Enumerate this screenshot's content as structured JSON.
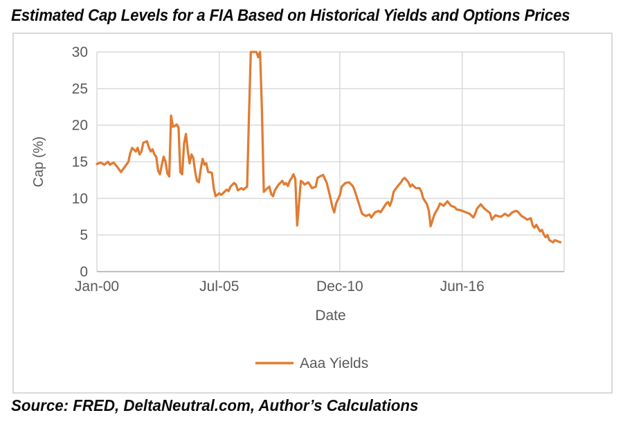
{
  "title": "Estimated Cap Levels for a FIA Based on Historical Yields and Options Prices",
  "source": "Source: FRED, DeltaNeutral.com, Author’s Calculations",
  "colors": {
    "line": "#E07C33",
    "gridline": "#D9D9D9",
    "axis_line": "#BFBFBF",
    "tick_text": "#595959",
    "frame_border": "#D9D9D9",
    "text": "#0B0B0B"
  },
  "chart_data": {
    "type": "line",
    "xlabel": "Date",
    "ylabel": "Cap (%)",
    "ylim": [
      0,
      30
    ],
    "yticks": [
      0,
      5,
      10,
      15,
      20,
      25,
      30
    ],
    "x_unit": "months since Jan-2000",
    "x_domain_months": [
      0,
      252
    ],
    "xticks": [
      {
        "month": 0,
        "label": "Jan-00"
      },
      {
        "month": 66,
        "label": "Jul-05"
      },
      {
        "month": 131,
        "label": "Dec-10"
      },
      {
        "month": 197,
        "label": "Jun-16"
      }
    ],
    "grid": true,
    "legend_position": "bottom",
    "series": [
      {
        "name": "Aaa Yields",
        "color": "#E07C33",
        "points": [
          [
            0,
            14.7
          ],
          [
            2,
            14.9
          ],
          [
            4,
            14.6
          ],
          [
            6,
            15.0
          ],
          [
            7,
            14.6
          ],
          [
            9,
            14.9
          ],
          [
            11,
            14.3
          ],
          [
            13,
            13.6
          ],
          [
            15,
            14.3
          ],
          [
            17,
            15.0
          ],
          [
            18,
            16.2
          ],
          [
            19,
            16.9
          ],
          [
            21,
            16.4
          ],
          [
            22,
            16.9
          ],
          [
            23,
            16.0
          ],
          [
            24,
            16.4
          ],
          [
            25,
            17.6
          ],
          [
            27,
            17.8
          ],
          [
            28,
            17.0
          ],
          [
            29,
            16.4
          ],
          [
            30,
            16.7
          ],
          [
            31,
            16.0
          ],
          [
            32,
            15.7
          ],
          [
            33,
            13.8
          ],
          [
            34,
            13.3
          ],
          [
            35,
            14.6
          ],
          [
            36,
            15.7
          ],
          [
            37,
            15.0
          ],
          [
            38,
            13.4
          ],
          [
            39,
            13.0
          ],
          [
            40,
            21.3
          ],
          [
            41,
            19.8
          ],
          [
            42,
            19.9
          ],
          [
            43,
            20.1
          ],
          [
            44,
            19.7
          ],
          [
            45,
            13.6
          ],
          [
            46,
            13.3
          ],
          [
            47,
            17.5
          ],
          [
            48,
            18.8
          ],
          [
            49,
            16.5
          ],
          [
            50,
            14.8
          ],
          [
            51,
            16.0
          ],
          [
            52,
            15.5
          ],
          [
            53,
            13.6
          ],
          [
            54,
            12.4
          ],
          [
            55,
            12.2
          ],
          [
            56,
            14.0
          ],
          [
            57,
            15.4
          ],
          [
            58,
            14.6
          ],
          [
            59,
            14.8
          ],
          [
            60,
            13.6
          ],
          [
            62,
            13.5
          ],
          [
            63,
            11.4
          ],
          [
            64,
            10.3
          ],
          [
            65,
            10.5
          ],
          [
            66,
            10.7
          ],
          [
            67,
            10.5
          ],
          [
            68,
            10.7
          ],
          [
            70,
            11.2
          ],
          [
            71,
            11.0
          ],
          [
            72,
            11.6
          ],
          [
            74,
            12.1
          ],
          [
            75,
            11.9
          ],
          [
            76,
            11.1
          ],
          [
            78,
            11.4
          ],
          [
            79,
            11.2
          ],
          [
            80,
            11.4
          ],
          [
            81,
            11.6
          ],
          [
            82,
            21.0
          ],
          [
            83,
            30.0
          ],
          [
            84,
            30.0
          ],
          [
            85,
            30.0
          ],
          [
            86,
            30.0
          ],
          [
            87,
            29.3
          ],
          [
            88,
            30.0
          ],
          [
            89,
            22.0
          ],
          [
            90,
            10.9
          ],
          [
            92,
            11.4
          ],
          [
            93,
            11.6
          ],
          [
            94,
            10.6
          ],
          [
            95,
            10.3
          ],
          [
            96,
            11.1
          ],
          [
            98,
            11.9
          ],
          [
            100,
            12.4
          ],
          [
            101,
            11.9
          ],
          [
            102,
            12.1
          ],
          [
            103,
            11.7
          ],
          [
            104,
            12.4
          ],
          [
            105,
            12.8
          ],
          [
            106,
            13.3
          ],
          [
            107,
            12.7
          ],
          [
            108,
            6.3
          ],
          [
            110,
            12.4
          ],
          [
            111,
            12.2
          ],
          [
            112,
            11.9
          ],
          [
            114,
            12.2
          ],
          [
            116,
            11.4
          ],
          [
            118,
            11.6
          ],
          [
            119,
            12.8
          ],
          [
            121,
            13.1
          ],
          [
            122,
            13.2
          ],
          [
            124,
            12.1
          ],
          [
            126,
            10.0
          ],
          [
            127,
            8.8
          ],
          [
            128,
            8.1
          ],
          [
            129,
            9.3
          ],
          [
            131,
            10.4
          ],
          [
            132,
            11.6
          ],
          [
            134,
            12.1
          ],
          [
            136,
            12.2
          ],
          [
            138,
            11.7
          ],
          [
            139,
            11.1
          ],
          [
            141,
            9.5
          ],
          [
            143,
            7.9
          ],
          [
            145,
            7.6
          ],
          [
            147,
            7.8
          ],
          [
            148,
            7.4
          ],
          [
            150,
            8.1
          ],
          [
            152,
            8.3
          ],
          [
            153,
            8.1
          ],
          [
            154,
            8.5
          ],
          [
            156,
            9.3
          ],
          [
            157,
            9.5
          ],
          [
            158,
            9.0
          ],
          [
            159,
            9.7
          ],
          [
            160,
            10.9
          ],
          [
            162,
            11.6
          ],
          [
            164,
            12.2
          ],
          [
            165,
            12.6
          ],
          [
            166,
            12.8
          ],
          [
            168,
            12.2
          ],
          [
            169,
            11.6
          ],
          [
            170,
            11.9
          ],
          [
            172,
            11.4
          ],
          [
            174,
            11.4
          ],
          [
            175,
            10.9
          ],
          [
            176,
            10.0
          ],
          [
            178,
            9.2
          ],
          [
            179,
            8.3
          ],
          [
            180,
            6.2
          ],
          [
            182,
            7.8
          ],
          [
            184,
            8.7
          ],
          [
            185,
            9.3
          ],
          [
            187,
            9.0
          ],
          [
            188,
            9.3
          ],
          [
            189,
            9.6
          ],
          [
            191,
            9.0
          ],
          [
            193,
            8.8
          ],
          [
            194,
            8.5
          ],
          [
            196,
            8.4
          ],
          [
            197,
            8.3
          ],
          [
            199,
            8.1
          ],
          [
            201,
            7.9
          ],
          [
            203,
            7.4
          ],
          [
            204,
            7.9
          ],
          [
            205,
            8.6
          ],
          [
            207,
            9.2
          ],
          [
            209,
            8.6
          ],
          [
            210,
            8.4
          ],
          [
            212,
            8.0
          ],
          [
            213,
            7.1
          ],
          [
            215,
            7.7
          ],
          [
            216,
            7.6
          ],
          [
            218,
            7.5
          ],
          [
            220,
            7.9
          ],
          [
            222,
            7.6
          ],
          [
            224,
            8.1
          ],
          [
            226,
            8.3
          ],
          [
            227,
            8.2
          ],
          [
            228,
            7.9
          ],
          [
            229,
            7.6
          ],
          [
            231,
            7.3
          ],
          [
            232,
            7.1
          ],
          [
            234,
            7.3
          ],
          [
            235,
            6.3
          ],
          [
            236,
            6.0
          ],
          [
            237,
            6.4
          ],
          [
            239,
            5.5
          ],
          [
            240,
            5.7
          ],
          [
            241,
            5.1
          ],
          [
            242,
            4.7
          ],
          [
            243,
            5.0
          ],
          [
            244,
            4.3
          ],
          [
            246,
            4.0
          ],
          [
            247,
            4.3
          ],
          [
            249,
            4.1
          ],
          [
            250,
            4.0
          ]
        ]
      }
    ]
  }
}
